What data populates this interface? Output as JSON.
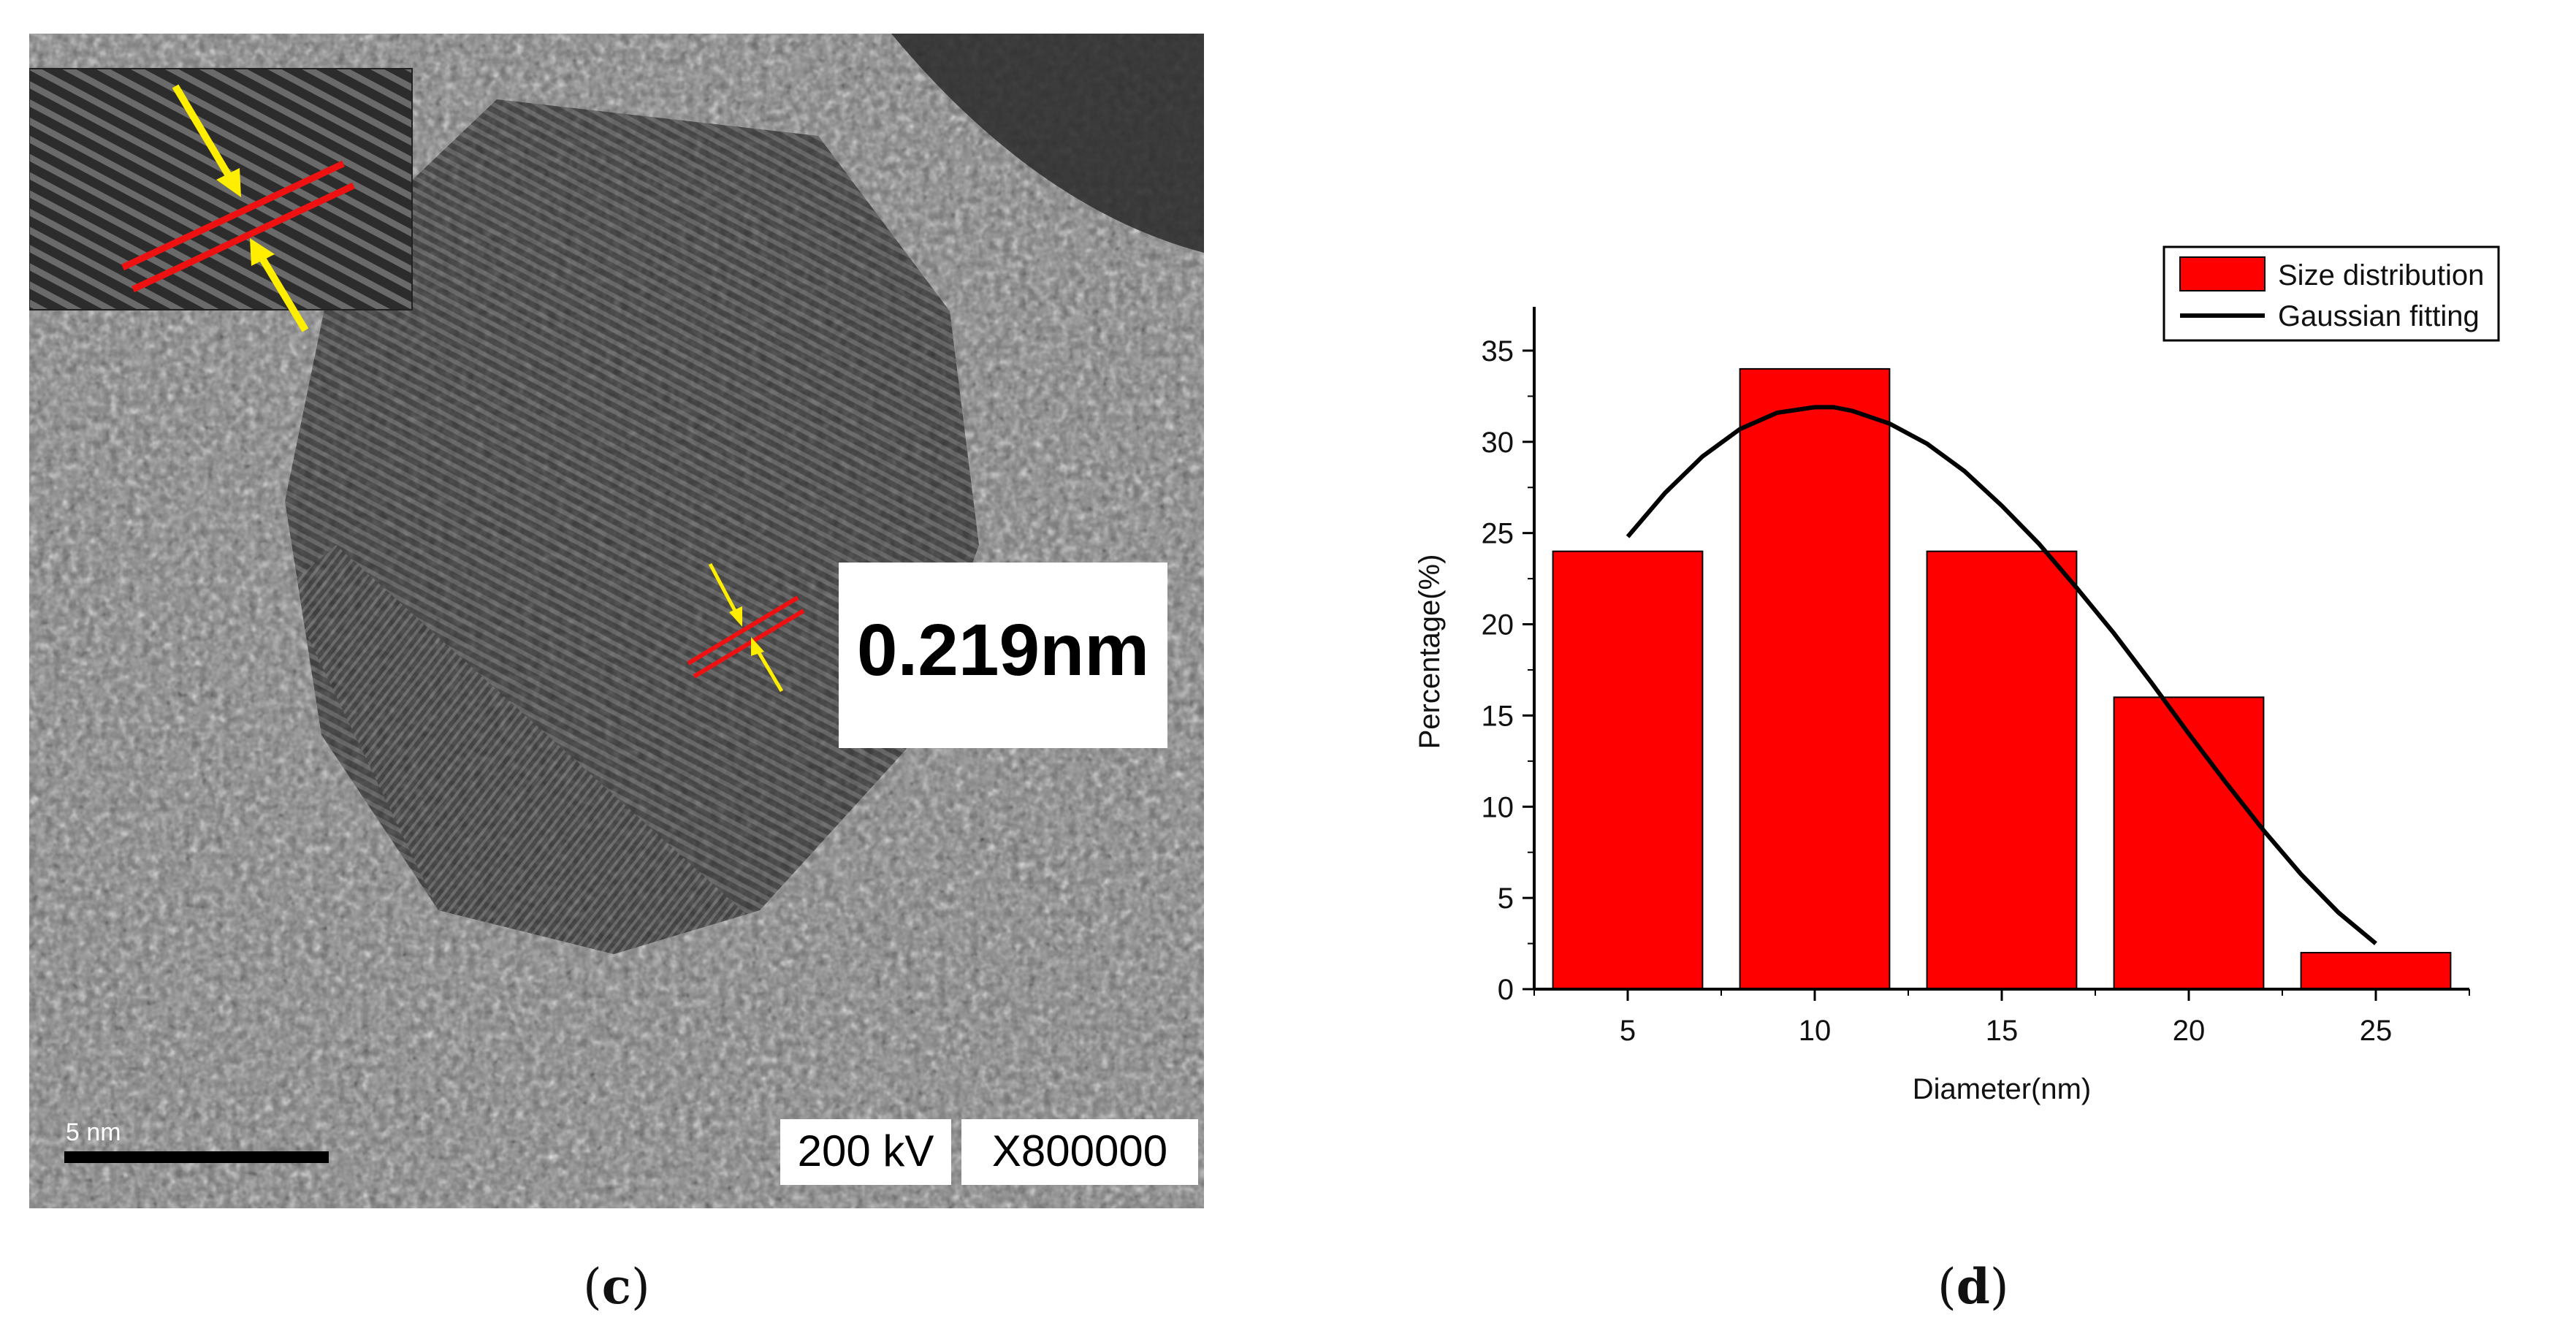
{
  "figure": {
    "panel_c_label": "c",
    "panel_d_label": "d"
  },
  "tem": {
    "lattice_spacing": "0.219nm",
    "scale_bar": "5 nm",
    "voltage": "200 kV",
    "magnification": "X800000",
    "colors": {
      "fringe_marker": "#ee1111",
      "arrow": "#ffee00"
    }
  },
  "chart_data": {
    "type": "bar",
    "xlabel": "Diameter(nm)",
    "ylabel": "Percentage(%)",
    "x": [
      5,
      10,
      15,
      20,
      25
    ],
    "values": [
      24,
      34,
      24,
      16,
      2
    ],
    "xlim": [
      2.5,
      27.5
    ],
    "ylim": [
      0,
      37
    ],
    "xticks": [
      5,
      10,
      15,
      20,
      25
    ],
    "yticks": [
      0,
      5,
      10,
      15,
      20,
      25,
      30,
      35
    ],
    "legend": {
      "placement": "top-right",
      "entries": [
        "Size distribution",
        "Gaussian fitting"
      ]
    },
    "series": [
      {
        "name": "Size distribution",
        "kind": "bar",
        "color": "#ff0000"
      },
      {
        "name": "Gaussian fitting",
        "kind": "line",
        "color": "#000000",
        "x": [
          5,
          6,
          7,
          8,
          9,
          10,
          10.5,
          11,
          12,
          13,
          14,
          15,
          16,
          17,
          18,
          19,
          20,
          21,
          22,
          23,
          24,
          25
        ],
        "y": [
          24.8,
          27.2,
          29.2,
          30.7,
          31.6,
          31.9,
          31.9,
          31.7,
          31.0,
          29.9,
          28.4,
          26.5,
          24.4,
          22.0,
          19.5,
          16.8,
          14.0,
          11.3,
          8.7,
          6.3,
          4.2,
          2.5
        ]
      }
    ]
  }
}
